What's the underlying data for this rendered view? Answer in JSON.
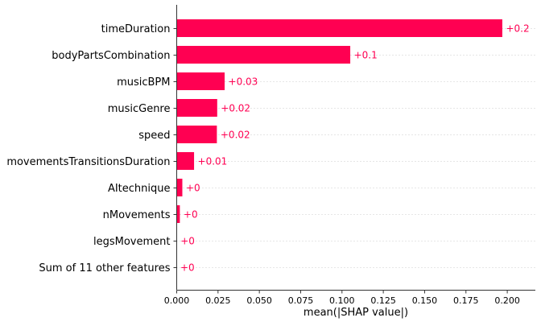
{
  "chart_data": {
    "type": "bar",
    "orientation": "horizontal",
    "title": "",
    "xlabel": "mean(|SHAP value|)",
    "ylabel": "",
    "categories": [
      "timeDuration",
      "bodyPartsCombination",
      "musicBPM",
      "musicGenre",
      "speed",
      "movementsTransitionsDuration",
      "AItechnique",
      "nMovements",
      "legsMovement",
      "Sum of 11 other features"
    ],
    "values": [
      0.197,
      0.105,
      0.029,
      0.0245,
      0.0243,
      0.0105,
      0.0034,
      0.0019,
      0.0001,
      0.0
    ],
    "data_labels": [
      "+0.2",
      "+0.1",
      "+0.03",
      "+0.02",
      "+0.02",
      "+0.01",
      "+0",
      "+0",
      "+0",
      "+0"
    ],
    "x_ticks": [
      0.0,
      0.025,
      0.05,
      0.075,
      0.1,
      0.125,
      0.15,
      0.175,
      0.2
    ],
    "x_tick_labels": [
      "0.000",
      "0.025",
      "0.050",
      "0.075",
      "0.100",
      "0.125",
      "0.150",
      "0.175",
      "0.200"
    ],
    "xlim": [
      0,
      0.217
    ],
    "grid": "horizontal dotted row lines",
    "bar_color": "#ff0052",
    "label_color": "#ff0052",
    "axis_color": "#333333"
  }
}
